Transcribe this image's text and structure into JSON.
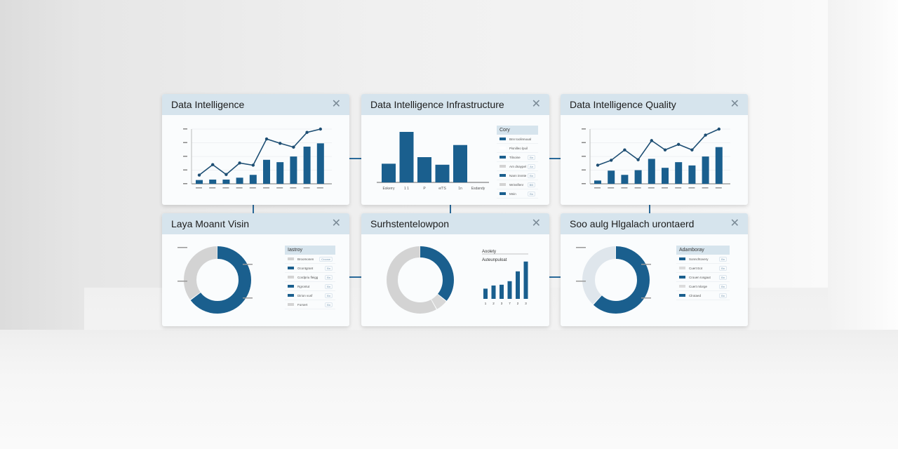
{
  "colors": {
    "accent": "#1a5f8e",
    "gray": "#d3d3d3",
    "light": "#dfe6ec",
    "header": "#d6e4ed"
  },
  "cards": [
    {
      "title": "Data Intelligence",
      "close_icon": "close-icon",
      "type": "combo",
      "chart_data": {
        "type": "bar+line",
        "bars": [
          8,
          9,
          9,
          13,
          19,
          51,
          46,
          58,
          79,
          86
        ],
        "line": [
          16,
          35,
          17,
          38,
          34,
          82,
          74,
          67,
          94,
          100
        ],
        "ylim": [
          0,
          100
        ],
        "grid": true
      }
    },
    {
      "title": "Data Intelligence Infrastructure",
      "close_icon": "close-icon",
      "type": "bar",
      "chart_data": {
        "type": "bar",
        "categories": [
          "Eskerry",
          "1 1",
          "P",
          "e/TS",
          "1n",
          "Esdandy"
        ],
        "values": [
          37,
          100,
          50,
          35,
          74,
          0
        ],
        "ylim": [
          0,
          110
        ]
      },
      "legend": {
        "title": "Cory",
        "items": [
          {
            "label": "Bnn toolinnuual",
            "color": "#1a5f8e"
          },
          {
            "label": "Pisnilleo lpuil",
            "color": "#ffffff"
          },
          {
            "label": "Tilnoine",
            "color": "#1a5f8e",
            "value": "Bn"
          },
          {
            "label": "Arn dnaypel",
            "color": "#d3d3d3",
            "value": "An"
          },
          {
            "label": "Nann innnte",
            "color": "#1a5f8e",
            "value": "Bn"
          },
          {
            "label": "Wrinsflenr",
            "color": "#d3d3d3",
            "value": "BB"
          },
          {
            "label": "Mnin",
            "color": "#1a5f8e",
            "value": "Bn"
          }
        ]
      }
    },
    {
      "title": "Data Intelligence Quality",
      "close_icon": "close-icon",
      "type": "combo",
      "chart_data": {
        "type": "bar+line",
        "bars": [
          7,
          28,
          19,
          29,
          53,
          34,
          46,
          39,
          58,
          78
        ],
        "line": [
          34,
          43,
          62,
          44,
          79,
          62,
          72,
          62,
          89,
          100
        ],
        "ylim": [
          0,
          100
        ],
        "grid": true
      }
    },
    {
      "title": "Laya Moanıt Visin",
      "close_icon": "close-icon",
      "type": "donut",
      "chart_data": {
        "type": "pie",
        "values": [
          65,
          35
        ],
        "colors": [
          "#1a5f8e",
          "#d3d3d3"
        ]
      },
      "legend": {
        "title": "Iastroy",
        "items": [
          {
            "label": "Broomonen",
            "color": "#d3d3d3",
            "value": "Croose"
          },
          {
            "label": "Ocontgrant",
            "color": "#1a5f8e",
            "value": "Bn"
          },
          {
            "label": "Cordpriu fleigg",
            "color": "#d3d3d3",
            "value": "Bn"
          },
          {
            "label": "Rgrontut",
            "color": "#1a5f8e",
            "value": "Bn"
          },
          {
            "label": "Dirion vusf",
            "color": "#1a5f8e",
            "value": "Bn"
          },
          {
            "label": "Forsert",
            "color": "#d3d3d3",
            "value": "Bn"
          }
        ]
      }
    },
    {
      "title": "Surhstentelowpon",
      "close_icon": "close-icon",
      "type": "donut-bars",
      "chart_data": [
        {
          "type": "pie",
          "values": [
            36,
            6,
            58
          ],
          "colors": [
            "#1a5f8e",
            "#d8d8d8",
            "#d3d3d3"
          ]
        },
        {
          "type": "bar",
          "title": "Aoolety",
          "subtitle": "Auteunpuloat",
          "categories": [
            "1",
            "2",
            "3",
            "7",
            "2",
            "3"
          ],
          "values": [
            26,
            34,
            36,
            45,
            70,
            95
          ],
          "ylim": [
            0,
            100
          ]
        }
      ]
    },
    {
      "title": "Soo aulg Hlgalach urontaerd",
      "close_icon": "close-icon",
      "type": "donut",
      "chart_data": {
        "type": "pie",
        "values": [
          62,
          38
        ],
        "colors": [
          "#1a5f8e",
          "#dfe6ec"
        ]
      },
      "legend": {
        "title": "Adamboray",
        "items": [
          {
            "label": "Sonnchtovery",
            "color": "#1a5f8e",
            "value": "Bn"
          },
          {
            "label": "Cuert Eot",
            "color": "#dcdcdc",
            "value": "Bn"
          },
          {
            "label": "Crouen Iosgaut",
            "color": "#1a5f8e",
            "value": "Bn"
          },
          {
            "label": "Cuert mlorge",
            "color": "#dcdcdc",
            "value": "Bn"
          },
          {
            "label": "Clrutaed",
            "color": "#1a5f8e",
            "value": "Bn"
          }
        ]
      }
    }
  ]
}
